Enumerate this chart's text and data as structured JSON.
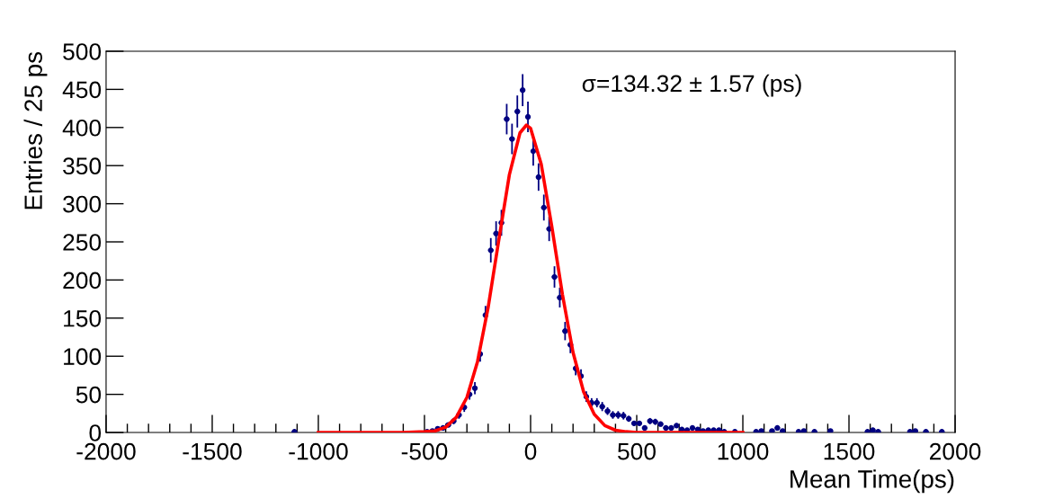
{
  "chart_data": {
    "type": "scatter",
    "xlabel": "Mean Time(ps)",
    "ylabel": "Entries / 25 ps",
    "annotations": [
      "σ=134.32 ± 1.57 (ps)"
    ],
    "xlim": [
      -2000,
      2000
    ],
    "xticks": [
      -2000,
      -1500,
      -1000,
      -500,
      0,
      500,
      1000,
      1500,
      2000
    ],
    "ylim": [
      0,
      500
    ],
    "yticks": [
      0,
      50,
      100,
      150,
      200,
      250,
      300,
      350,
      400,
      450,
      500
    ],
    "grid": false,
    "legend": false,
    "marker": "circle",
    "series": [
      {
        "type": "scatter",
        "color": "#000080",
        "x": [
          -1112.5,
          -487.5,
          -462.5,
          -437.5,
          -412.5,
          -387.5,
          -362.5,
          -337.5,
          -312.5,
          -287.5,
          -262.5,
          -237.5,
          -212.5,
          -187.5,
          -162.5,
          -137.5,
          -112.5,
          -87.5,
          -62.5,
          -37.5,
          -12.5,
          12.5,
          37.5,
          62.5,
          87.5,
          112.5,
          137.5,
          162.5,
          187.5,
          212.5,
          237.5,
          262.5,
          287.5,
          312.5,
          337.5,
          362.5,
          387.5,
          412.5,
          437.5,
          462.5,
          487.5,
          512.5,
          537.5,
          562.5,
          587.5,
          612.5,
          637.5,
          662.5,
          687.5,
          712.5,
          737.5,
          762.5,
          787.5,
          812.5,
          837.5,
          862.5,
          887.5,
          912.5,
          962.5,
          1062.5,
          1087.5,
          1137.5,
          1162.5,
          1187.5,
          1262.5,
          1287.5,
          1337.5,
          1412.5,
          1587.5,
          1612.5,
          1637.5,
          1787.5,
          1812.5,
          1862.5,
          1937.5
        ],
        "values": [
          1,
          1,
          2,
          5,
          6,
          10,
          15,
          23,
          33,
          50,
          58,
          103,
          154,
          239,
          261,
          275,
          411,
          385,
          421,
          449,
          414,
          369,
          335,
          295,
          267,
          204,
          177,
          133,
          115,
          84,
          74,
          47,
          39,
          39,
          34,
          28,
          23,
          23,
          22,
          18,
          12,
          12,
          6,
          15,
          14,
          11,
          6,
          6,
          9,
          4,
          3,
          6,
          4,
          2,
          3,
          3,
          3,
          1,
          1,
          1,
          2,
          2,
          6,
          2,
          1,
          2,
          1,
          2,
          1,
          3,
          1,
          1,
          2,
          1,
          1
        ],
        "errors": [
          null,
          null,
          null,
          2,
          2,
          3,
          4,
          5,
          6,
          7,
          8,
          10,
          12,
          16,
          16,
          17,
          20,
          20,
          21,
          21,
          20,
          19,
          18,
          17,
          16,
          14,
          13,
          12,
          11,
          9,
          9,
          7,
          6,
          6,
          6,
          5,
          5,
          5,
          5,
          4,
          3,
          3,
          2,
          4,
          4,
          3,
          2,
          2,
          3,
          null,
          null,
          2,
          null,
          null,
          null,
          null,
          null,
          null,
          null,
          null,
          null,
          null,
          2,
          null,
          null,
          null,
          null,
          null,
          null,
          null,
          null,
          null,
          null,
          null,
          null
        ],
        "xerrors": [
          12.5,
          12.5,
          12.5,
          12.5,
          12.5,
          12.5,
          12.5,
          12.5,
          12.5,
          12.5,
          12.5,
          12.5,
          12.5,
          12.5,
          12.5,
          12.5,
          12.5,
          12.5,
          12.5,
          12.5,
          12.5,
          12.5,
          12.5,
          12.5,
          12.5,
          12.5,
          12.5,
          12.5,
          12.5,
          12.5,
          12.5,
          12.5,
          12.5,
          12.5,
          12.5,
          12.5,
          12.5,
          12.5,
          12.5,
          12.5,
          12.5,
          12.5,
          12.5,
          12.5,
          12.5,
          12.5,
          12.5,
          12.5,
          12.5,
          12.5,
          12.5,
          12.5,
          12.5,
          12.5,
          12.5,
          12.5,
          12.5,
          12.5,
          12.5,
          12.5,
          12.5,
          12.5,
          12.5,
          12.5,
          12.5,
          12.5,
          12.5,
          12.5,
          12.5,
          12.5,
          12.5,
          12.5,
          12.5,
          12.5,
          12.5
        ]
      },
      {
        "type": "line",
        "color": "#ff0000",
        "marker": "none",
        "x": [
          -1000,
          -600,
          -500,
          -450,
          -400,
          -350,
          -300,
          -250,
          -200,
          -150,
          -100,
          -50,
          -20,
          0,
          50,
          100,
          150,
          200,
          250,
          300,
          350,
          400,
          450,
          500,
          600,
          1000
        ],
        "values": [
          0,
          0,
          1,
          2,
          7,
          20,
          46,
          93,
          164,
          252,
          338,
          393,
          403,
          399,
          352,
          270,
          181,
          105,
          53,
          24,
          9,
          3,
          1,
          0,
          0,
          0
        ]
      }
    ]
  }
}
